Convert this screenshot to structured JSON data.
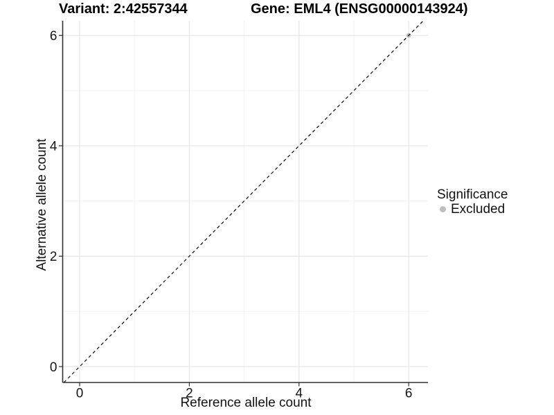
{
  "chart_data": {
    "type": "scatter",
    "titles": [
      "Variant: 2:42557344",
      "Gene: EML4 (ENSG00000143924)"
    ],
    "xlabel": "Reference allele count",
    "ylabel": "Alternative allele count",
    "x_ticks": [
      0,
      2,
      4,
      6
    ],
    "y_ticks": [
      0,
      2,
      4,
      6
    ],
    "x_minor_ticks": [
      1,
      3,
      5
    ],
    "y_minor_ticks": [
      1,
      3,
      5
    ],
    "xlim": [
      -0.31,
      6.35
    ],
    "ylim": [
      -0.29,
      6.27
    ],
    "grid": "major+minor",
    "reference_line": {
      "slope": 1,
      "intercept": 0,
      "style": "dashed",
      "color": "#000000"
    },
    "series": [
      {
        "name": "Excluded",
        "color": "#bebebe",
        "points": [
          [
            6,
            6
          ]
        ]
      }
    ],
    "legend": {
      "title": "Significance",
      "position": "right",
      "entries": [
        {
          "label": "Excluded",
          "color": "#bebebe"
        }
      ]
    },
    "colors": {
      "grid_major": "#e6e6e6",
      "grid_minor": "#f1f1f1",
      "axis": "#2f2f2f",
      "text": "#141414"
    }
  }
}
